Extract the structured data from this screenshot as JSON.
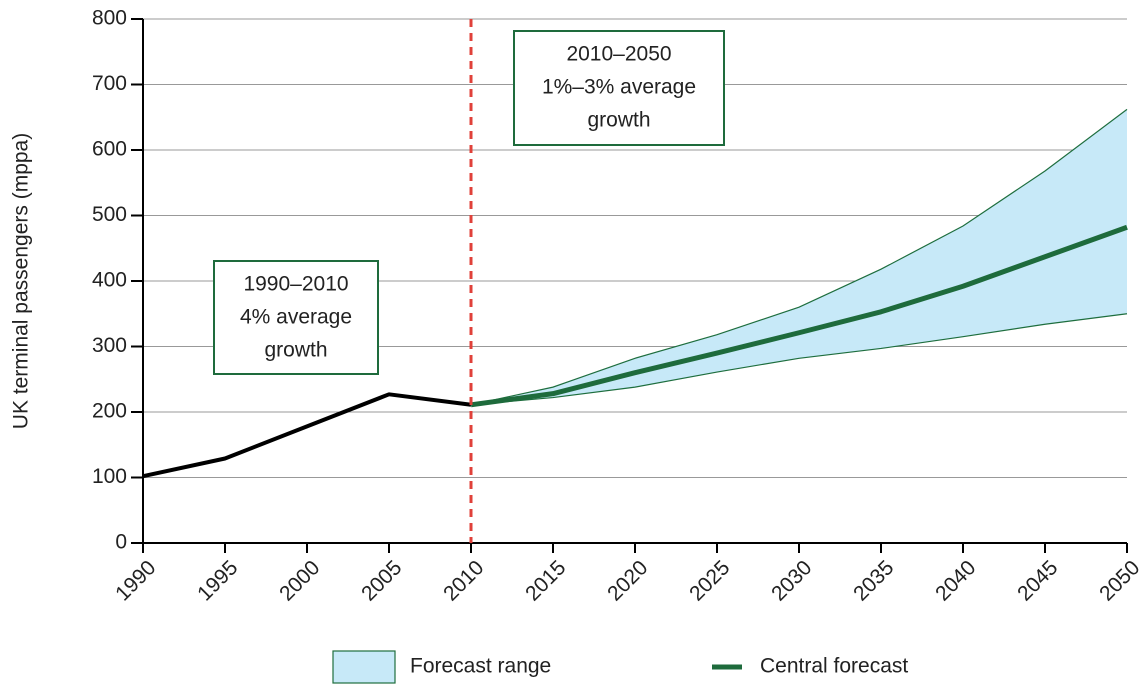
{
  "chart_data": {
    "type": "line",
    "y_label": "UK terminal passengers (mppa)",
    "x": [
      1990,
      1995,
      2000,
      2005,
      2010,
      2015,
      2020,
      2025,
      2030,
      2035,
      2040,
      2045,
      2050
    ],
    "xlim": [
      1990,
      2050
    ],
    "xticks": [
      1990,
      1995,
      2000,
      2005,
      2010,
      2015,
      2020,
      2025,
      2030,
      2035,
      2040,
      2045,
      2050
    ],
    "ylim": [
      0,
      800
    ],
    "yticks": [
      0,
      100,
      200,
      300,
      400,
      500,
      600,
      700,
      800
    ],
    "grid": true,
    "history": {
      "color": "#000000",
      "values": [
        102,
        129,
        178,
        227,
        211,
        null,
        null,
        null,
        null,
        null,
        null,
        null,
        null
      ]
    },
    "series": [
      {
        "name": "Forecast range",
        "type": "band",
        "color": "#c7e9f8",
        "edge_color": "#1e6e3e",
        "lower": [
          null,
          null,
          null,
          null,
          211,
          222,
          238,
          261,
          282,
          297,
          315,
          334,
          350
        ],
        "upper": [
          null,
          null,
          null,
          null,
          211,
          238,
          282,
          318,
          360,
          418,
          484,
          568,
          662
        ]
      },
      {
        "name": "Central forecast",
        "type": "line",
        "color": "#1e6b3c",
        "values": [
          null,
          null,
          null,
          null,
          211,
          228,
          260,
          290,
          321,
          353,
          392,
          437,
          482
        ]
      }
    ],
    "vline": {
      "x": 2010,
      "color": "#e0413a"
    },
    "annotations": [
      {
        "lines": [
          "1990–2010",
          "4% average",
          "growth"
        ]
      },
      {
        "lines": [
          "2010–2050",
          "1%–3% average",
          "growth"
        ]
      }
    ],
    "legend": "bottom"
  }
}
